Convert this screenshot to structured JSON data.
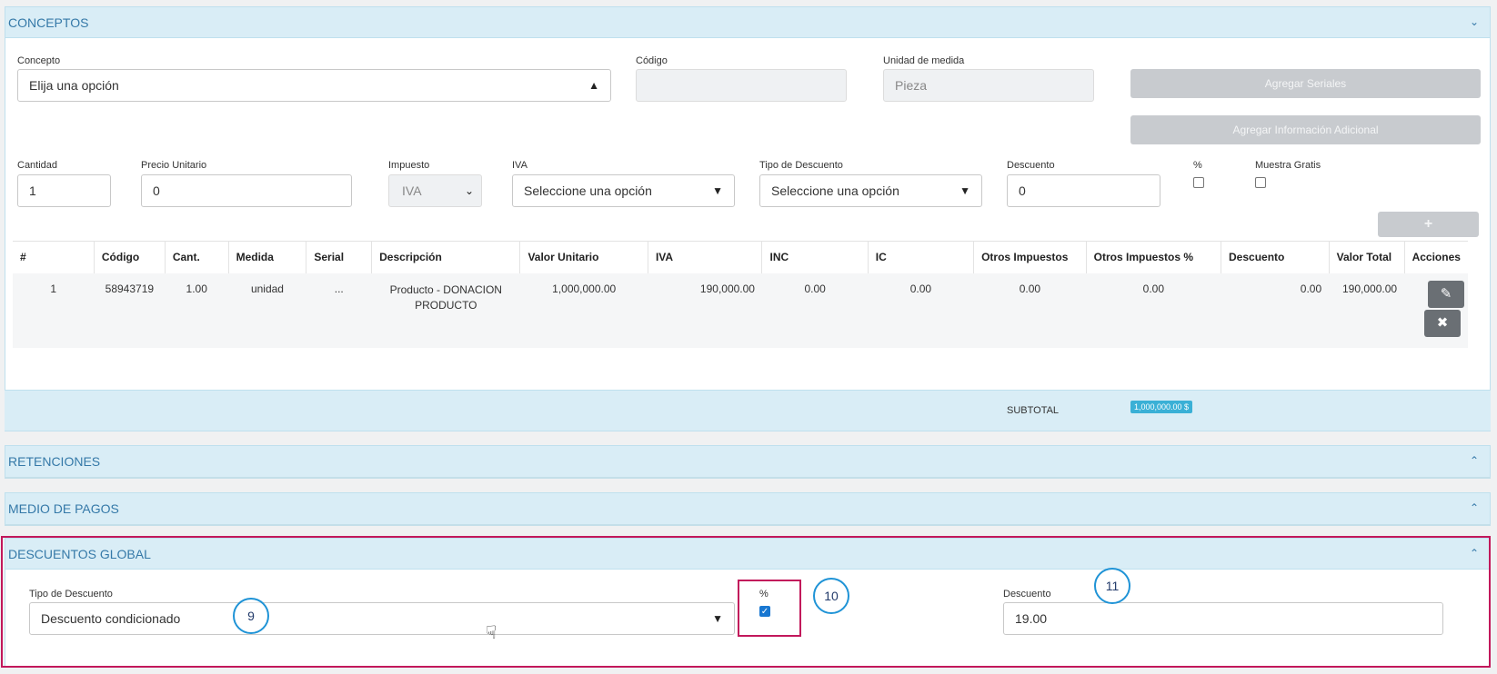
{
  "conceptos": {
    "header": "CONCEPTOS",
    "concepto_label": "Concepto",
    "concepto_value": "Elija una opción",
    "codigo_label": "Código",
    "codigo_value": "",
    "unidad_label": "Unidad de medida",
    "unidad_value": "Pieza",
    "agregar_seriales": "Agregar Seriales",
    "agregar_info": "Agregar Información Adicional",
    "cantidad_label": "Cantidad",
    "cantidad_value": "1",
    "precio_label": "Precio Unitario",
    "precio_value": "0",
    "impuesto_label": "Impuesto",
    "impuesto_value": "IVA",
    "iva_label": "IVA",
    "iva_value": "Seleccione una opción",
    "tipo_desc_label": "Tipo de Descuento",
    "tipo_desc_value": "Seleccione una opción",
    "descuento_label": "Descuento",
    "descuento_value": "0",
    "pct_label": "%",
    "muestra_label": "Muestra Gratis",
    "add_button": "+"
  },
  "table": {
    "columns": [
      "#",
      "Código",
      "Cant.",
      "Medida",
      "Serial",
      "Descripción",
      "Valor Unitario",
      "IVA",
      "INC",
      "IC",
      "Otros Impuestos",
      "Otros Impuestos %",
      "Descuento",
      "Valor Total",
      "Acciones"
    ],
    "rows": [
      [
        "1",
        "58943719",
        "1.00",
        "unidad",
        "...",
        "Producto - DONACION PRODUCTO",
        "1,000,000.00",
        "190,000.00",
        "0.00",
        "0.00",
        "0.00",
        "0.00",
        "0.00",
        "190,000.00"
      ]
    ]
  },
  "subtotal": {
    "label": "SUBTOTAL",
    "value": "1,000,000.00 $"
  },
  "retenciones": {
    "header": "RETENCIONES"
  },
  "medio_pagos": {
    "header": "MEDIO DE PAGOS"
  },
  "descuentos_global": {
    "header": "DESCUENTOS GLOBAL",
    "tipo_label": "Tipo de Descuento",
    "tipo_value": "Descuento condicionado",
    "pct_label": "%",
    "pct_checked": true,
    "descuento_label": "Descuento",
    "descuento_value": "19.00"
  },
  "callouts": {
    "c9": "9",
    "c10": "10",
    "c11": "11"
  },
  "colors": {
    "header_bg": "#d9edf6",
    "header_text": "#3579a8",
    "highlight": "#c2185b",
    "callout": "#1f93d6"
  }
}
